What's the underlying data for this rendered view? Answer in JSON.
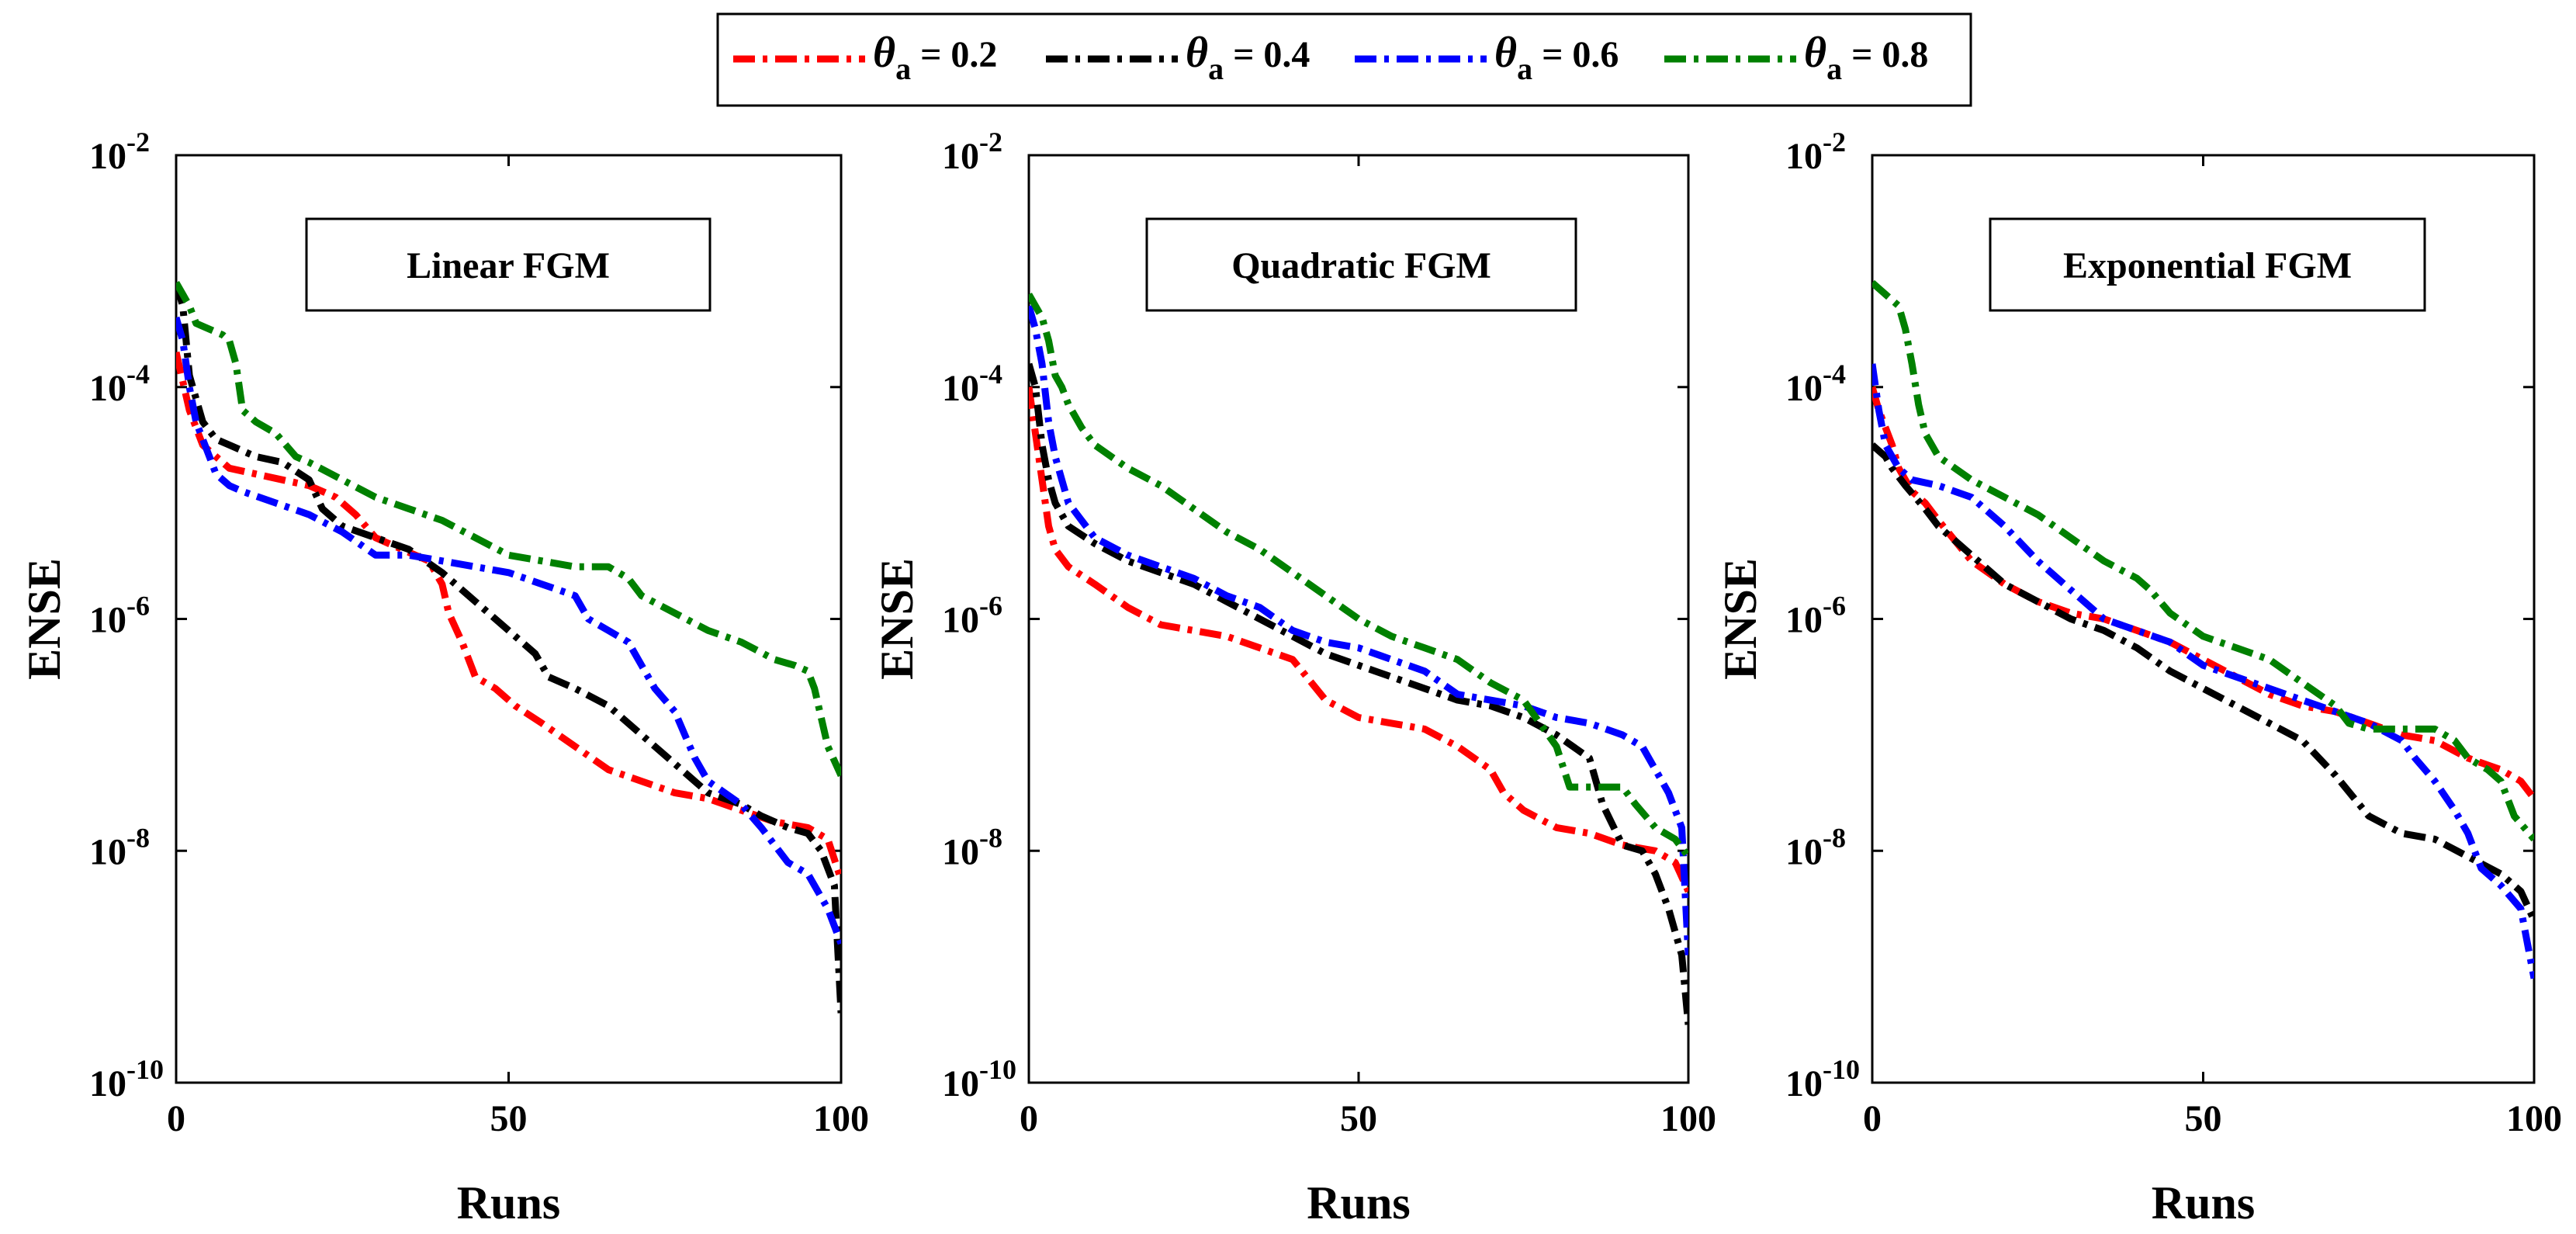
{
  "legend": {
    "symbol": "θ",
    "subscript": "a",
    "entries": [
      {
        "value": "0.2",
        "color": "#ff0000"
      },
      {
        "value": "0.4",
        "color": "#000000"
      },
      {
        "value": "0.6",
        "color": "#0000ff"
      },
      {
        "value": "0.8",
        "color": "#008000"
      }
    ]
  },
  "chart_data": [
    {
      "type": "line",
      "title": "Linear FGM",
      "xlabel": "Runs",
      "ylabel": "ENSE",
      "xlim": [
        0,
        100
      ],
      "ylim_exp": [
        -10,
        -2
      ],
      "yscale": "log",
      "xticks": [
        "0",
        "50",
        "100"
      ],
      "yticks": [
        {
          "base": "10",
          "exp": "-2"
        },
        {
          "base": "10",
          "exp": "-4"
        },
        {
          "base": "10",
          "exp": "-6"
        },
        {
          "base": "10",
          "exp": "-8"
        },
        {
          "base": "10",
          "exp": "-10"
        }
      ],
      "series": [
        {
          "name": "θa = 0.2",
          "color": "#ff0000",
          "x": [
            0,
            2,
            4,
            6,
            8,
            12,
            16,
            20,
            24,
            27,
            30,
            34,
            38,
            40,
            41,
            43,
            45,
            48,
            51,
            55,
            60,
            65,
            70,
            75,
            80,
            85,
            90,
            95,
            98,
            100
          ],
          "log10y": [
            -3.7,
            -4.2,
            -4.5,
            -4.6,
            -4.7,
            -4.75,
            -4.8,
            -4.85,
            -4.95,
            -5.1,
            -5.3,
            -5.4,
            -5.5,
            -5.7,
            -5.95,
            -6.2,
            -6.5,
            -6.6,
            -6.75,
            -6.9,
            -7.1,
            -7.3,
            -7.4,
            -7.5,
            -7.55,
            -7.65,
            -7.75,
            -7.8,
            -7.9,
            -8.25
          ]
        },
        {
          "name": "θa = 0.4",
          "color": "#000000",
          "x": [
            0,
            1,
            2,
            4,
            6,
            8,
            12,
            16,
            20,
            22,
            25,
            30,
            35,
            40,
            45,
            50,
            54,
            56,
            60,
            65,
            70,
            75,
            80,
            85,
            88,
            90,
            92,
            95,
            97,
            99,
            100
          ],
          "log10y": [
            -3.1,
            -3.3,
            -3.9,
            -4.3,
            -4.45,
            -4.5,
            -4.6,
            -4.65,
            -4.8,
            -5.05,
            -5.2,
            -5.3,
            -5.4,
            -5.6,
            -5.85,
            -6.1,
            -6.3,
            -6.5,
            -6.6,
            -6.75,
            -7.0,
            -7.25,
            -7.5,
            -7.6,
            -7.7,
            -7.75,
            -7.8,
            -7.85,
            -8.0,
            -8.3,
            -9.4
          ]
        },
        {
          "name": "θa = 0.6",
          "color": "#0000ff",
          "x": [
            0,
            1,
            2,
            3,
            4,
            5,
            6,
            8,
            10,
            15,
            20,
            25,
            30,
            35,
            40,
            45,
            50,
            55,
            60,
            62,
            65,
            68,
            70,
            72,
            75,
            78,
            80,
            85,
            88,
            90,
            92,
            95,
            98,
            100
          ],
          "log10y": [
            -3.4,
            -3.6,
            -4.0,
            -4.3,
            -4.45,
            -4.6,
            -4.75,
            -4.85,
            -4.9,
            -5.0,
            -5.1,
            -5.25,
            -5.45,
            -5.45,
            -5.5,
            -5.55,
            -5.6,
            -5.7,
            -5.8,
            -6.0,
            -6.1,
            -6.2,
            -6.4,
            -6.6,
            -6.8,
            -7.2,
            -7.4,
            -7.6,
            -7.8,
            -7.95,
            -8.1,
            -8.2,
            -8.5,
            -8.8
          ]
        },
        {
          "name": "θa = 0.8",
          "color": "#008000",
          "x": [
            0,
            1,
            2,
            3,
            5,
            7,
            8,
            9,
            10,
            12,
            15,
            18,
            20,
            25,
            30,
            35,
            40,
            45,
            50,
            55,
            60,
            62,
            65,
            68,
            70,
            75,
            80,
            85,
            90,
            93,
            95,
            96,
            98,
            100
          ],
          "log10y": [
            -3.1,
            -3.2,
            -3.3,
            -3.45,
            -3.5,
            -3.55,
            -3.6,
            -3.8,
            -4.2,
            -4.3,
            -4.4,
            -4.6,
            -4.65,
            -4.8,
            -4.95,
            -5.05,
            -5.15,
            -5.3,
            -5.45,
            -5.5,
            -5.55,
            -5.55,
            -5.55,
            -5.65,
            -5.8,
            -5.95,
            -6.1,
            -6.2,
            -6.35,
            -6.4,
            -6.45,
            -6.6,
            -7.1,
            -7.35
          ]
        }
      ]
    },
    {
      "type": "line",
      "title": "Quadratic FGM",
      "xlabel": "Runs",
      "ylabel": "ENSE",
      "xlim": [
        0,
        100
      ],
      "ylim_exp": [
        -10,
        -2
      ],
      "yscale": "log",
      "xticks": [
        "0",
        "50",
        "100"
      ],
      "yticks": [
        {
          "base": "10",
          "exp": "-2"
        },
        {
          "base": "10",
          "exp": "-4"
        },
        {
          "base": "10",
          "exp": "-6"
        },
        {
          "base": "10",
          "exp": "-8"
        },
        {
          "base": "10",
          "exp": "-10"
        }
      ],
      "series": [
        {
          "name": "θa = 0.2",
          "color": "#ff0000",
          "x": [
            0,
            1,
            2,
            3,
            4,
            6,
            10,
            15,
            20,
            25,
            30,
            35,
            40,
            45,
            50,
            55,
            60,
            65,
            70,
            72,
            75,
            80,
            85,
            90,
            95,
            98,
            100
          ],
          "log10y": [
            -4.0,
            -4.4,
            -4.8,
            -5.2,
            -5.4,
            -5.55,
            -5.7,
            -5.9,
            -6.05,
            -6.1,
            -6.15,
            -6.25,
            -6.35,
            -6.7,
            -6.85,
            -6.9,
            -6.95,
            -7.1,
            -7.3,
            -7.5,
            -7.65,
            -7.8,
            -7.85,
            -7.95,
            -8.0,
            -8.1,
            -8.35
          ]
        },
        {
          "name": "θa = 0.4",
          "color": "#000000",
          "x": [
            0,
            1,
            2,
            3,
            4,
            6,
            10,
            15,
            20,
            25,
            30,
            35,
            40,
            45,
            50,
            55,
            60,
            65,
            70,
            75,
            80,
            85,
            87,
            90,
            93,
            95,
            97,
            99,
            100
          ],
          "log10y": [
            -3.8,
            -4.0,
            -4.5,
            -4.8,
            -5.0,
            -5.2,
            -5.35,
            -5.5,
            -5.6,
            -5.7,
            -5.85,
            -6.0,
            -6.15,
            -6.3,
            -6.4,
            -6.5,
            -6.6,
            -6.7,
            -6.75,
            -6.85,
            -7.0,
            -7.2,
            -7.6,
            -7.95,
            -8.0,
            -8.2,
            -8.5,
            -8.9,
            -9.5
          ]
        },
        {
          "name": "θa = 0.6",
          "color": "#0000ff",
          "x": [
            0,
            1,
            2,
            3,
            4,
            6,
            10,
            15,
            20,
            25,
            30,
            35,
            40,
            45,
            50,
            55,
            60,
            65,
            70,
            75,
            80,
            85,
            90,
            93,
            95,
            97,
            99,
            100
          ],
          "log10y": [
            -3.3,
            -3.5,
            -3.8,
            -4.3,
            -4.6,
            -5.0,
            -5.3,
            -5.45,
            -5.55,
            -5.65,
            -5.8,
            -5.9,
            -6.1,
            -6.2,
            -6.25,
            -6.35,
            -6.45,
            -6.65,
            -6.7,
            -6.75,
            -6.85,
            -6.9,
            -7.0,
            -7.1,
            -7.3,
            -7.5,
            -7.8,
            -8.9
          ]
        },
        {
          "name": "θa = 0.8",
          "color": "#008000",
          "x": [
            0,
            1,
            2,
            3,
            4,
            5,
            6,
            8,
            10,
            15,
            20,
            25,
            30,
            35,
            40,
            45,
            50,
            55,
            60,
            65,
            70,
            75,
            80,
            82,
            85,
            90,
            92,
            95,
            98,
            100
          ],
          "log10y": [
            -3.2,
            -3.3,
            -3.4,
            -3.6,
            -3.9,
            -4.0,
            -4.15,
            -4.35,
            -4.5,
            -4.7,
            -4.85,
            -5.05,
            -5.25,
            -5.4,
            -5.6,
            -5.8,
            -6.0,
            -6.15,
            -6.25,
            -6.35,
            -6.55,
            -6.7,
            -7.1,
            -7.45,
            -7.45,
            -7.45,
            -7.6,
            -7.8,
            -7.9,
            -8.05
          ]
        }
      ]
    },
    {
      "type": "line",
      "title": "Exponential FGM",
      "xlabel": "Runs",
      "ylabel": "ENSE",
      "xlim": [
        0,
        100
      ],
      "ylim_exp": [
        -10,
        -2
      ],
      "yscale": "log",
      "xticks": [
        "0",
        "50",
        "100"
      ],
      "yticks": [
        {
          "base": "10",
          "exp": "-2"
        },
        {
          "base": "10",
          "exp": "-4"
        },
        {
          "base": "10",
          "exp": "-6"
        },
        {
          "base": "10",
          "exp": "-8"
        },
        {
          "base": "10",
          "exp": "-10"
        }
      ],
      "series": [
        {
          "name": "θa = 0.2",
          "color": "#ff0000",
          "x": [
            0,
            1,
            2,
            3,
            4,
            6,
            8,
            10,
            15,
            20,
            25,
            30,
            35,
            40,
            45,
            50,
            55,
            60,
            65,
            70,
            75,
            80,
            85,
            90,
            95,
            98,
            100
          ],
          "log10y": [
            -4.0,
            -4.2,
            -4.35,
            -4.5,
            -4.7,
            -4.9,
            -5.0,
            -5.15,
            -5.5,
            -5.7,
            -5.85,
            -5.95,
            -6.0,
            -6.1,
            -6.2,
            -6.35,
            -6.5,
            -6.65,
            -6.75,
            -6.8,
            -6.9,
            -7.0,
            -7.05,
            -7.2,
            -7.3,
            -7.4,
            -7.55
          ]
        },
        {
          "name": "θa = 0.4",
          "color": "#000000",
          "x": [
            0,
            1,
            2,
            3,
            5,
            8,
            10,
            15,
            20,
            25,
            30,
            35,
            40,
            45,
            50,
            55,
            60,
            65,
            70,
            75,
            80,
            85,
            90,
            95,
            98,
            100
          ],
          "log10y": [
            -4.5,
            -4.55,
            -4.6,
            -4.7,
            -4.85,
            -5.05,
            -5.2,
            -5.45,
            -5.7,
            -5.85,
            -6.0,
            -6.1,
            -6.25,
            -6.45,
            -6.6,
            -6.75,
            -6.9,
            -7.05,
            -7.35,
            -7.7,
            -7.85,
            -7.9,
            -8.05,
            -8.2,
            -8.35,
            -8.6
          ]
        },
        {
          "name": "θa = 0.6",
          "color": "#0000ff",
          "x": [
            0,
            1,
            2,
            3,
            4,
            6,
            10,
            15,
            20,
            25,
            30,
            35,
            40,
            45,
            50,
            55,
            60,
            65,
            70,
            75,
            80,
            82,
            85,
            88,
            90,
            92,
            95,
            98,
            100
          ],
          "log10y": [
            -3.8,
            -4.2,
            -4.5,
            -4.6,
            -4.7,
            -4.8,
            -4.85,
            -4.95,
            -5.2,
            -5.5,
            -5.75,
            -6.0,
            -6.1,
            -6.2,
            -6.4,
            -6.5,
            -6.6,
            -6.7,
            -6.8,
            -6.9,
            -7.05,
            -7.2,
            -7.4,
            -7.65,
            -7.85,
            -8.15,
            -8.3,
            -8.5,
            -9.1
          ]
        },
        {
          "name": "θa = 0.8",
          "color": "#008000",
          "x": [
            0,
            1,
            2,
            4,
            5,
            6,
            7,
            8,
            10,
            15,
            20,
            25,
            30,
            35,
            40,
            42,
            45,
            50,
            55,
            60,
            65,
            70,
            72,
            75,
            80,
            85,
            88,
            90,
            93,
            95,
            97,
            100
          ],
          "log10y": [
            -3.1,
            -3.15,
            -3.2,
            -3.3,
            -3.5,
            -3.8,
            -4.15,
            -4.4,
            -4.6,
            -4.8,
            -4.95,
            -5.1,
            -5.3,
            -5.5,
            -5.65,
            -5.75,
            -5.95,
            -6.15,
            -6.25,
            -6.35,
            -6.55,
            -6.75,
            -6.9,
            -6.95,
            -6.95,
            -6.95,
            -7.05,
            -7.2,
            -7.3,
            -7.4,
            -7.7,
            -7.9
          ]
        }
      ]
    }
  ]
}
